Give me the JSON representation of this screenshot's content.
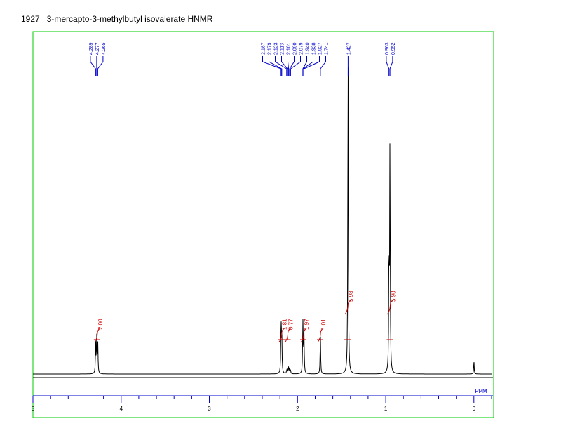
{
  "header": {
    "number": "1927",
    "title": "3-mercapto-3-methylbutyl isovalerate HNMR"
  },
  "chart_data": {
    "type": "line",
    "title": "3-mercapto-3-methylbutyl isovalerate HNMR",
    "xlabel": "PPM",
    "ylabel": "",
    "xlim": [
      5,
      -0.2
    ],
    "x_ticks": [
      5,
      4,
      3,
      2,
      1,
      0
    ],
    "x_tick_labels": [
      "5",
      "4",
      "3",
      "2",
      "1",
      "0"
    ],
    "series": [
      {
        "x": [
          4.289,
          4.277,
          4.265,
          2.187,
          2.179,
          2.123,
          2.113,
          2.101,
          2.09,
          2.079,
          1.94,
          1.938,
          1.927,
          1.741,
          1.427,
          0.963,
          0.952,
          0.0
        ],
        "y": [
          0.09,
          0.11,
          0.09,
          0.16,
          0.12,
          0.01,
          0.015,
          0.02,
          0.015,
          0.01,
          0.09,
          0.08,
          0.12,
          0.12,
          1.0,
          0.36,
          0.7,
          0.04
        ]
      }
    ],
    "peak_labels": [
      "4.289",
      "4.277",
      "4.265",
      "2.187",
      "2.179",
      "2.123",
      "2.113",
      "2.101",
      "2.090",
      "2.079",
      "1.940",
      "1.938",
      "1.927",
      "1.741",
      "1.427",
      "0.963",
      "0.952"
    ],
    "integrals": [
      {
        "label": "2.00",
        "x": 4.27
      },
      {
        "label": "1.81",
        "x": 2.18
      },
      {
        "label": "0.77",
        "x": 2.11
      },
      {
        "label": "1.97",
        "x": 1.93
      },
      {
        "label": "1.01",
        "x": 1.74
      },
      {
        "label": "5.98",
        "x": 1.43
      },
      {
        "label": "5.98",
        "x": 0.95
      }
    ],
    "colors": {
      "frame": "#00cc00",
      "spectrum": "#000000",
      "peak_label": "#0000cc",
      "integral": "#cc0000",
      "axis": "#0000cc"
    }
  }
}
